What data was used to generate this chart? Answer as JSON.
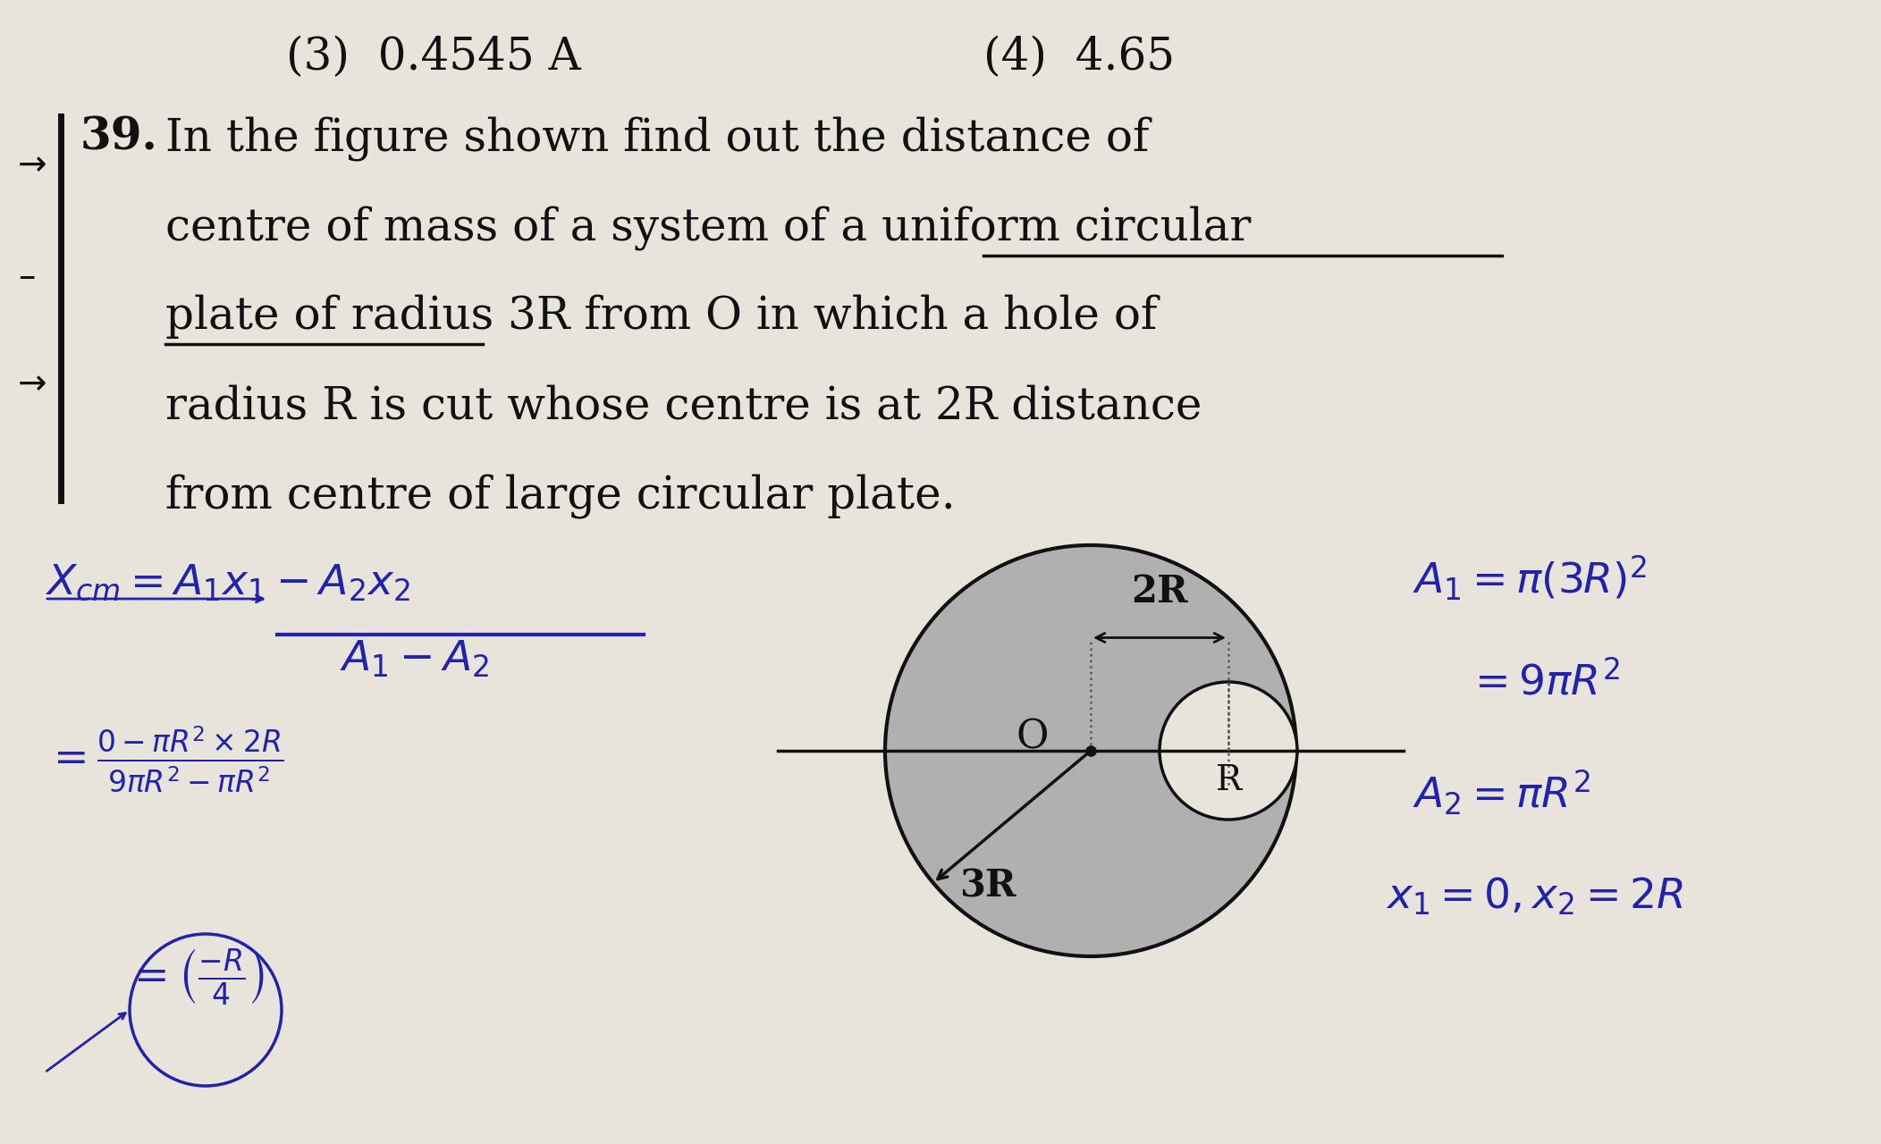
{
  "bg_color": "#e8e4dc",
  "fig_width": 21.04,
  "fig_height": 12.8,
  "text_color": "#111111",
  "hand_color": "#2222aa",
  "top_text_left": "(3)  0.4545 A",
  "top_text_right": "(4)  4.65",
  "question_number": "39.",
  "question_lines": [
    "In the figure shown find out the distance of",
    "centre of mass of a system of a uniform circular",
    "plate of radius 3R from O in which a hole of",
    "radius R is cut whose centre is at 2R distance",
    "from centre of large circular plate."
  ],
  "underline_uniform_circular": [
    0.545,
    0.81
  ],
  "underline_plate_of": [
    0.115,
    0.27
  ],
  "circle_fill_color": "#b0b0b0",
  "hole_fill_color": "#e8e4dc",
  "circle_edge_color": "#111111",
  "arrow_color": "#111111",
  "dot_line_color": "#555555",
  "annotation_2R": "2R",
  "annotation_O": "O",
  "annotation_R": "R",
  "annotation_3R": "3R",
  "left_bar_color": "#111111"
}
